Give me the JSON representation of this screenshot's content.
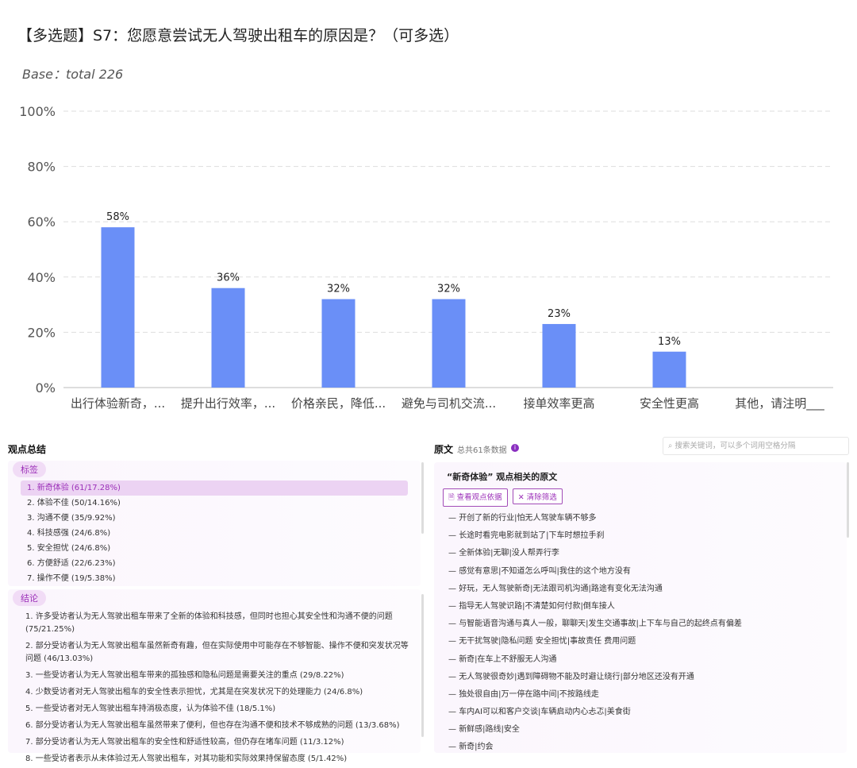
{
  "title": "【多选题】S7：您愿意尝试无人驾驶出租车的原因是？（可多选）",
  "base": "Base：total 226",
  "colors": {
    "bar": "#6a8ff7",
    "accent": "#9b2fb8"
  },
  "chart_data": {
    "type": "bar",
    "categories": [
      "出行体验新奇，...",
      "提升出行效率，...",
      "价格亲民，降低...",
      "避免与司机交流...",
      "接单效率更高",
      "安全性更高",
      "其他，请注明___"
    ],
    "values": [
      58,
      36,
      32,
      32,
      23,
      13,
      0
    ],
    "labels": [
      "58%",
      "36%",
      "32%",
      "32%",
      "23%",
      "13%",
      ""
    ],
    "yticks": [
      "0%",
      "20%",
      "40%",
      "60%",
      "80%",
      "100%"
    ],
    "ylim": [
      0,
      100
    ],
    "grid": true
  },
  "summary": {
    "title": "观点总结",
    "tags_label": "标签",
    "tags": [
      "1. 新奇体验 (61/17.28%)",
      "2. 体验不佳 (50/14.16%)",
      "3. 沟通不便 (35/9.92%)",
      "4. 科技感强 (24/6.8%)",
      "5. 安全担忧 (24/6.8%)",
      "6. 方便舒适 (22/6.23%)",
      "7. 操作不便 (19/5.38%)"
    ],
    "conclusions_label": "结论",
    "conclusions": [
      "1. 许多受访者认为无人驾驶出租车带来了全新的体验和科技感，但同时也担心其安全性和沟通不便的问题 (75/21.25%)",
      "2. 部分受访者认为无人驾驶出租车虽然新奇有趣，但在实际使用中可能存在不够智能、操作不便和突发状况等问题 (46/13.03%)",
      "3. 一些受访者认为无人驾驶出租车带来的孤独感和隐私问题是需要关注的重点 (29/8.22%)",
      "4. 少数受访者对无人驾驶出租车的安全性表示担忧，尤其是在突发状况下的处理能力 (24/6.8%)",
      "5. 一些受访者对无人驾驶出租车持消极态度，认为体验不佳 (18/5.1%)",
      "6. 部分受访者认为无人驾驶出租车虽然带来了便利，但也存在沟通不便和技术不够成熟的问题 (13/3.68%)",
      "7. 部分受访者认为无人驾驶出租车的安全性和舒适性较高，但仍存在堵车问题 (11/3.12%)",
      "8. 一些受访者表示从未体验过无人驾驶出租车，对其功能和实际效果持保留态度 (5/1.42%)"
    ]
  },
  "original": {
    "title": "原文",
    "count": "总共61条数据",
    "search_placeholder": "搜索关键词，可以多个词用空格分隔",
    "heading": "“新奇体验” 观点相关的原文",
    "view_basis": "查看观点依据",
    "clear_filter": "清除筛选",
    "quotes": [
      "开创了新的行业|怕无人驾驶车辆不够多",
      "长途时看完电影就到站了|下车时想拉手刹",
      "全新体验|无聊|没人帮弄行李",
      "感觉有意思|不知道怎么呼叫|我住的这个地方没有",
      "好玩，无人驾驶新奇|无法跟司机沟通|路途有变化无法沟通",
      "指导无人驾驶识路|不清楚如何付款|倒车接人",
      "与智能语音沟通与真人一般，聊聊天|发生交通事故|上下车与自己的起终点有偏差",
      "无干扰驾驶|隐私问题 安全担忧|事故责任 费用问题",
      "新奇|在车上不舒服无人沟通",
      "无人驾驶很奇妙|遇到障碍物不能及时避让绕行|部分地区还没有开通",
      "独处很自由|万一停在路中间|不按路线走",
      "车内AI可以和客户交谈|车辆启动内心忐忑|美食街",
      "新鲜感|路线|安全",
      "新奇|约会"
    ]
  }
}
